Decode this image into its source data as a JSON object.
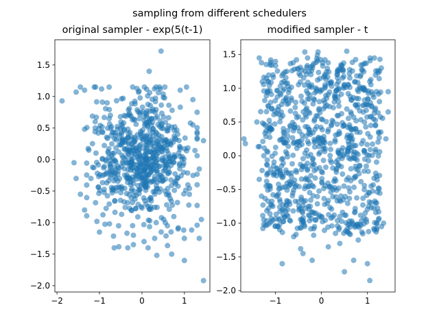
{
  "figure": {
    "title": "sampling from different schedulers"
  },
  "chart_data": [
    {
      "type": "scatter",
      "title": "original sampler - exp(5(t-1)",
      "xlabel": "",
      "ylabel": "",
      "xlim": [
        -2.05,
        1.6
      ],
      "ylim": [
        -2.1,
        1.9
      ],
      "xticks": [
        -2,
        -1,
        0,
        1
      ],
      "yticks": [
        -2.0,
        -1.5,
        -1.0,
        -0.5,
        0.0,
        0.5,
        1.0,
        1.5
      ],
      "xtick_labels": [
        "−2",
        "−1",
        "0",
        "1"
      ],
      "ytick_labels": [
        "−2.0",
        "−1.5",
        "−1.0",
        "−0.5",
        "0.0",
        "0.5",
        "1.0",
        "1.5"
      ],
      "grid": false,
      "color": "#1f77b4",
      "alpha": 0.55,
      "seed": 12345,
      "n_points": 700,
      "distribution": "approximately centered at (0,0), x std ~0.55 within about [-1.3,1.3], y std ~0.5 within about [-1.4,1.2]",
      "points": [
        [
          -1.88,
          0.93
        ],
        [
          -1.45,
          1.15
        ],
        [
          -1.55,
          1.07
        ],
        [
          -1.35,
          1.1
        ],
        [
          -0.95,
          1.12
        ],
        [
          0.17,
          1.4
        ],
        [
          0.45,
          1.72
        ],
        [
          1.05,
          1.15
        ],
        [
          1.2,
          0.95
        ],
        [
          1.3,
          0.75
        ],
        [
          1.45,
          0.3
        ],
        [
          1.2,
          0.55
        ],
        [
          -1.6,
          -0.05
        ],
        [
          -1.55,
          -0.3
        ],
        [
          -1.45,
          -0.55
        ],
        [
          -1.35,
          -0.8
        ],
        [
          -1.0,
          -1.15
        ],
        [
          -0.55,
          -1.05
        ],
        [
          -0.2,
          -1.2
        ],
        [
          -0.2,
          -1.35
        ],
        [
          0.35,
          -1.52
        ],
        [
          0.7,
          -1.5
        ],
        [
          1.0,
          -1.25
        ],
        [
          1.0,
          -1.6
        ],
        [
          1.4,
          -0.95
        ],
        [
          1.35,
          -1.25
        ],
        [
          1.45,
          -1.92
        ],
        [
          1.3,
          -0.4
        ],
        [
          1.35,
          -0.15
        ],
        [
          0.55,
          -1.0
        ],
        [
          -1.1,
          0.5
        ],
        [
          -1.25,
          0.15
        ],
        [
          -1.2,
          -0.3
        ],
        [
          -1.1,
          0.6
        ],
        [
          -1.35,
          0.48
        ],
        [
          0.05,
          -1.3
        ],
        [
          0.3,
          -1.25
        ],
        [
          0.6,
          -1.05
        ],
        [
          0.85,
          -1.1
        ],
        [
          0.9,
          1.1
        ]
      ]
    },
    {
      "type": "scatter",
      "title": "modified sampler - t",
      "xlabel": "",
      "ylabel": "",
      "xlim": [
        -1.75,
        1.6
      ],
      "ylim": [
        -2.02,
        1.72
      ],
      "xticks": [
        -1,
        0,
        1
      ],
      "yticks": [
        -2.0,
        -1.5,
        -1.0,
        -0.5,
        0.0,
        0.5,
        1.0,
        1.5
      ],
      "xtick_labels": [
        "−1",
        "0",
        "1"
      ],
      "ytick_labels": [
        "−2.0",
        "−1.5",
        "−1.0",
        "−0.5",
        "0.0",
        "0.5",
        "1.0",
        "1.5"
      ],
      "grid": false,
      "color": "#1f77b4",
      "alpha": 0.55,
      "seed": 67890,
      "n_points": 900,
      "distribution": "nearly uniform box, x within about [-1.3,1.3], y within about [-1.2,1.45]",
      "points": [
        [
          -1.68,
          0.25
        ],
        [
          -1.65,
          0.18
        ],
        [
          -1.35,
          1.45
        ],
        [
          -1.3,
          1.38
        ],
        [
          -1.1,
          1.42
        ],
        [
          -0.3,
          1.45
        ],
        [
          0.55,
          1.55
        ],
        [
          1.05,
          1.1
        ],
        [
          1.15,
          1.45
        ],
        [
          1.3,
          1.3
        ],
        [
          1.45,
          0.95
        ],
        [
          1.45,
          0.65
        ],
        [
          1.4,
          0.25
        ],
        [
          1.2,
          -0.7
        ],
        [
          1.35,
          -1.0
        ],
        [
          1.15,
          -1.1
        ],
        [
          0.95,
          -0.85
        ],
        [
          1.0,
          -1.6
        ],
        [
          1.05,
          -1.85
        ],
        [
          0.5,
          -1.72
        ],
        [
          0.7,
          -1.55
        ],
        [
          -0.2,
          -1.55
        ],
        [
          -0.4,
          -1.45
        ],
        [
          -0.45,
          -1.38
        ],
        [
          -0.85,
          -1.6
        ],
        [
          -1.25,
          -0.95
        ],
        [
          -1.3,
          -0.6
        ],
        [
          -1.35,
          -0.35
        ],
        [
          -1.4,
          0.5
        ],
        [
          -1.25,
          0.0
        ],
        [
          0.15,
          -1.35
        ],
        [
          0.4,
          -1.3
        ],
        [
          -0.6,
          -1.2
        ],
        [
          -0.95,
          -1.05
        ],
        [
          0.8,
          -1.25
        ],
        [
          -1.05,
          1.2
        ],
        [
          -0.75,
          1.25
        ],
        [
          0.35,
          1.25
        ],
        [
          0.9,
          1.35
        ],
        [
          -1.15,
          1.1
        ]
      ]
    }
  ]
}
